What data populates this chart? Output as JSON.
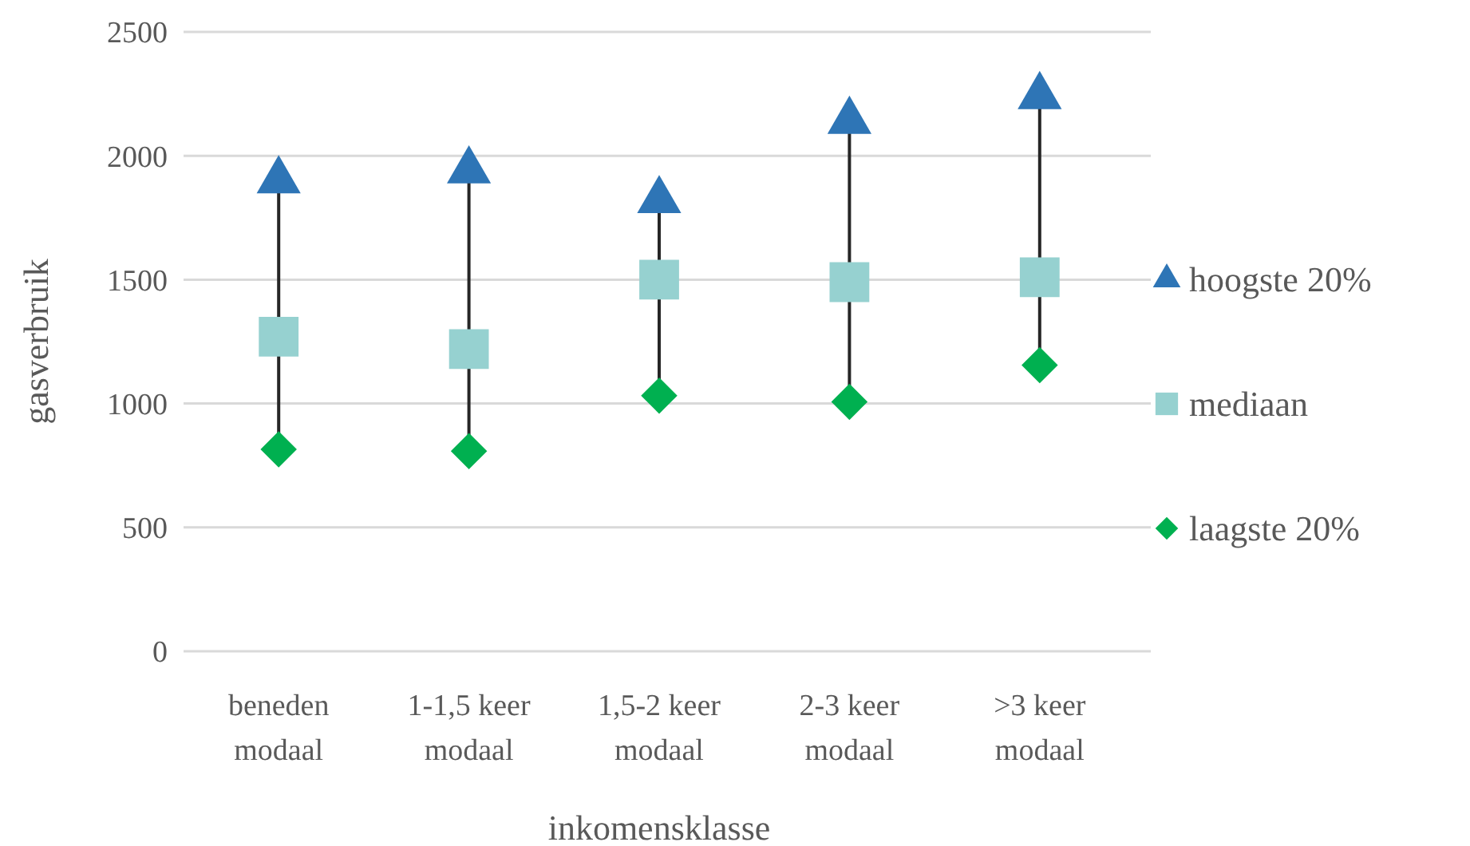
{
  "chart_data": {
    "type": "scatter",
    "xlabel": "inkomensklasse",
    "ylabel": "gasverbruik",
    "categories": [
      "beneden modaal",
      "1-1,5 keer modaal",
      "1,5-2 keer modaal",
      "2-3 keer modaal",
      ">3 keer modaal"
    ],
    "series": [
      {
        "name": "hoogste 20%",
        "color": "#2e75b6",
        "marker": "triangle",
        "values": [
          1900,
          1940,
          1820,
          2140,
          2240
        ]
      },
      {
        "name": "mediaan",
        "color": "#96d1d0",
        "marker": "square",
        "values": [
          1270,
          1220,
          1500,
          1490,
          1510
        ]
      },
      {
        "name": "laagste 20%",
        "color": "#00b050",
        "marker": "diamond",
        "values": [
          815,
          808,
          1032,
          1007,
          1155
        ]
      }
    ],
    "ylim": [
      0,
      2500
    ],
    "yticks": [
      0,
      500,
      1000,
      1500,
      2000,
      2500
    ],
    "grid": "y",
    "legend": "right"
  }
}
